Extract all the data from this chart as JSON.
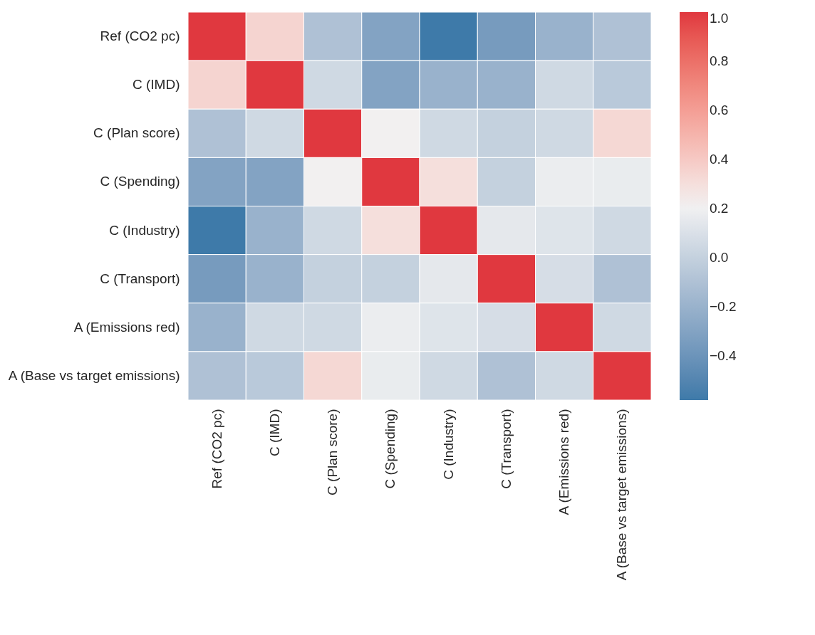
{
  "chart_data": {
    "type": "heatmap",
    "categories": [
      "Ref (CO2 pc)",
      "C (IMD)",
      "C (Plan score)",
      "C (Spending)",
      "C (Industry)",
      "C (Transport)",
      "A (Emissions red)",
      "A (Base vs target emissions)"
    ],
    "y_categories": [
      "Ref (CO2 pc)",
      "C (IMD)",
      "C (Plan score)",
      "C (Spending)",
      "C (Industry)",
      "C (Transport)",
      "A (Emissions red)",
      "A (Base vs target emissions)"
    ],
    "cells": [
      [
        1.0,
        0.35,
        -0.1,
        -0.3,
        -0.58,
        -0.35,
        -0.2,
        -0.1
      ],
      [
        0.35,
        1.0,
        0.05,
        -0.3,
        -0.2,
        -0.2,
        0.05,
        -0.05
      ],
      [
        -0.1,
        0.05,
        1.0,
        0.22,
        0.05,
        0.0,
        0.05,
        0.33
      ],
      [
        -0.3,
        -0.3,
        0.22,
        1.0,
        0.3,
        0.0,
        0.18,
        0.17
      ],
      [
        -0.58,
        -0.2,
        0.05,
        0.3,
        1.0,
        0.15,
        0.12,
        0.05
      ],
      [
        -0.35,
        -0.2,
        0.0,
        0.0,
        0.15,
        1.0,
        0.08,
        -0.1
      ],
      [
        -0.2,
        0.05,
        0.05,
        0.18,
        0.12,
        0.08,
        1.0,
        0.05
      ],
      [
        -0.1,
        -0.05,
        0.33,
        0.17,
        0.05,
        -0.1,
        0.05,
        1.0
      ]
    ],
    "clim": [
      -0.58,
      1.0
    ],
    "cticks": [
      {
        "value": -0.4,
        "label": "−0.4"
      },
      {
        "value": -0.2,
        "label": "−0.2"
      },
      {
        "value": 0.0,
        "label": "0.0"
      },
      0.2,
      0.4,
      0.6,
      0.8,
      {
        "value": 1.0,
        "label": "1.0"
      }
    ]
  }
}
